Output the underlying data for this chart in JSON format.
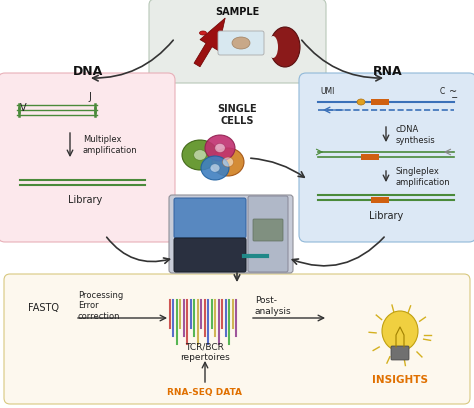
{
  "bg_color": "#ffffff",
  "sample_box_color": "#e8ece8",
  "dna_box_color": "#fce8ec",
  "rna_box_color": "#dce8f5",
  "bottom_box_color": "#fdf8ee",
  "sample_label": "SAMPLE",
  "dna_label": "DNA",
  "rna_label": "RNA",
  "single_cells_label": "SINGLE\nCELLS",
  "multiplex_label": "Multiplex\namplification",
  "library_label": "Library",
  "umi_label": "UMI",
  "c_label": "C",
  "cdna_label": "cDNA\nsynthesis",
  "singleplex_label": "Singleplex\namplification",
  "library2_label": "Library",
  "fastq_label": "FASTQ",
  "processing_label": "Processing\nError\ncorrection",
  "tcrbcr_label": "TCR/BCR\nrepertoires",
  "post_label": "Post-\nanalysis",
  "insights_label": "INSIGHTS",
  "rnaseq_label": "RNA-SEQ DATA",
  "insights_color": "#e07000",
  "v_label": "V",
  "j_label": "J",
  "arrow_color": "#333333",
  "dna_green": "#4a8a3a",
  "orange_rect": "#d06010",
  "rna_blue": "#3a70b8",
  "gray_line": "#888888"
}
